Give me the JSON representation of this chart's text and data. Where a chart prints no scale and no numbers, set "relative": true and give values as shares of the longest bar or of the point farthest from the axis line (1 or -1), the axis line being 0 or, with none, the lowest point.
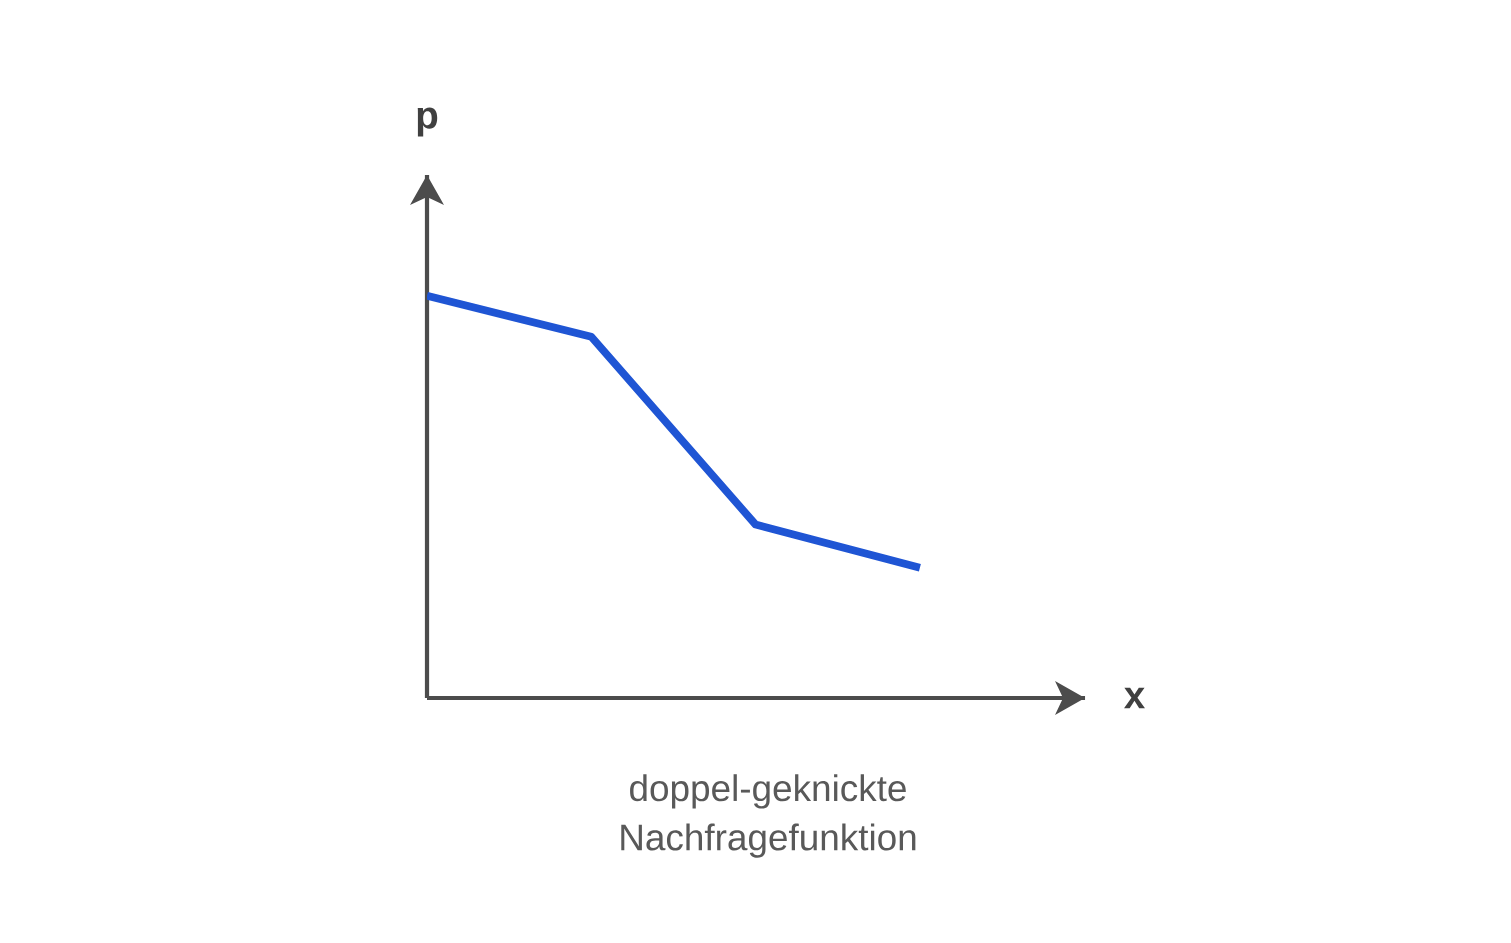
{
  "chart_data": {
    "type": "line",
    "relative": true,
    "xlabel": "x",
    "ylabel": "p",
    "categories": [
      null,
      null,
      null,
      null
    ],
    "values": [
      1,
      0.898,
      0.431,
      0.324
    ],
    "color": "#1f55d4",
    "marker": "none",
    "line_style": "solid",
    "annotations": [
      "doppel-geknickte Nachfragefunktion"
    ]
  }
}
